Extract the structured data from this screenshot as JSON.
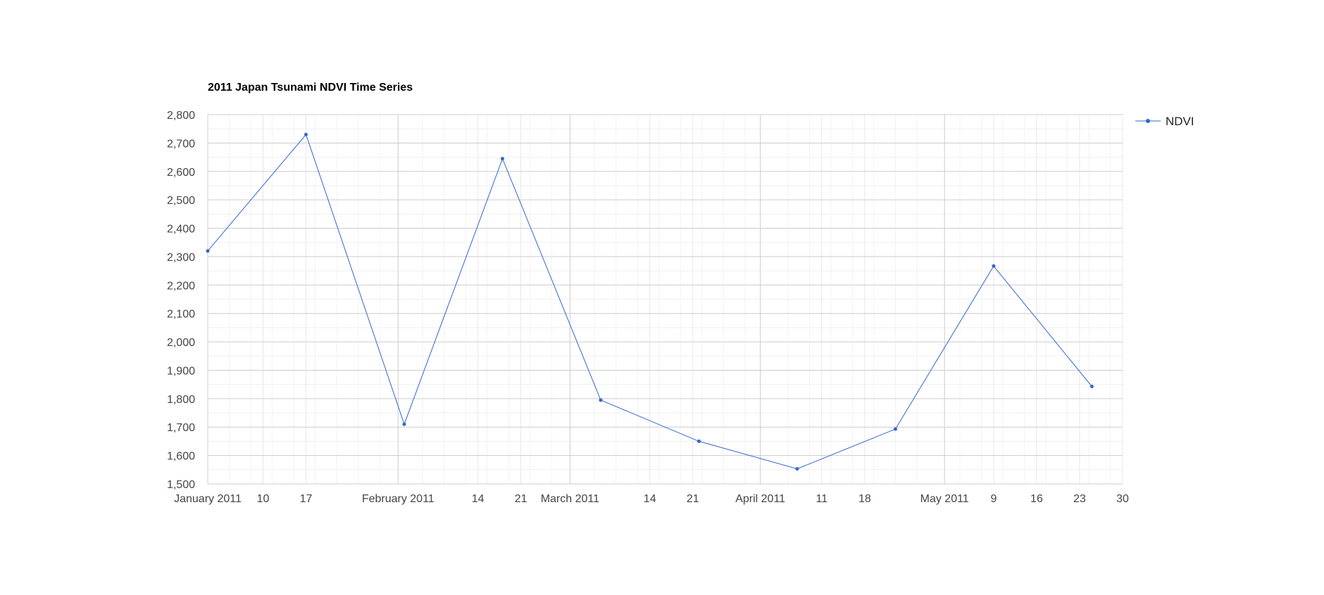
{
  "chart_data": {
    "type": "line",
    "title": "2011 Japan Tsunami NDVI Time Series",
    "xlabel": "",
    "ylabel": "",
    "x_axis_type": "date",
    "xlim": [
      "2011-01-01",
      "2011-05-30"
    ],
    "ylim": [
      1500,
      2800
    ],
    "y_ticks": [
      1500,
      1600,
      1700,
      1800,
      1900,
      2000,
      2100,
      2200,
      2300,
      2400,
      2500,
      2600,
      2700,
      2800
    ],
    "y_tick_labels": [
      "1,500",
      "1,600",
      "1,700",
      "1,800",
      "1,900",
      "2,000",
      "2,100",
      "2,200",
      "2,300",
      "2,400",
      "2,500",
      "2,600",
      "2,700",
      "2,800"
    ],
    "x_ticks": [
      {
        "date": "2011-01-01",
        "label": "January 2011",
        "major": true
      },
      {
        "date": "2011-01-10",
        "label": "10",
        "major": false
      },
      {
        "date": "2011-01-17",
        "label": "17",
        "major": false
      },
      {
        "date": "2011-02-01",
        "label": "February 2011",
        "major": true
      },
      {
        "date": "2011-02-14",
        "label": "14",
        "major": false
      },
      {
        "date": "2011-02-21",
        "label": "21",
        "major": false
      },
      {
        "date": "2011-03-01",
        "label": "March 2011",
        "major": true
      },
      {
        "date": "2011-03-14",
        "label": "14",
        "major": false
      },
      {
        "date": "2011-03-21",
        "label": "21",
        "major": false
      },
      {
        "date": "2011-04-01",
        "label": "April 2011",
        "major": true
      },
      {
        "date": "2011-04-11",
        "label": "11",
        "major": false
      },
      {
        "date": "2011-04-18",
        "label": "18",
        "major": false
      },
      {
        "date": "2011-05-01",
        "label": "May 2011",
        "major": true
      },
      {
        "date": "2011-05-09",
        "label": "9",
        "major": false
      },
      {
        "date": "2011-05-16",
        "label": "16",
        "major": false
      },
      {
        "date": "2011-05-23",
        "label": "23",
        "major": false
      },
      {
        "date": "2011-05-30",
        "label": "30",
        "major": false
      }
    ],
    "grid": true,
    "legend_position": "right",
    "series": [
      {
        "name": "NDVI",
        "color": "#3366cc",
        "points": [
          {
            "x": "2011-01-01",
            "y": 2320
          },
          {
            "x": "2011-01-17",
            "y": 2730
          },
          {
            "x": "2011-02-02",
            "y": 1710
          },
          {
            "x": "2011-02-18",
            "y": 2645
          },
          {
            "x": "2011-03-06",
            "y": 1795
          },
          {
            "x": "2011-03-22",
            "y": 1650
          },
          {
            "x": "2011-04-07",
            "y": 1553
          },
          {
            "x": "2011-04-23",
            "y": 1693
          },
          {
            "x": "2011-05-09",
            "y": 2267
          },
          {
            "x": "2011-05-25",
            "y": 1843
          }
        ]
      }
    ]
  }
}
